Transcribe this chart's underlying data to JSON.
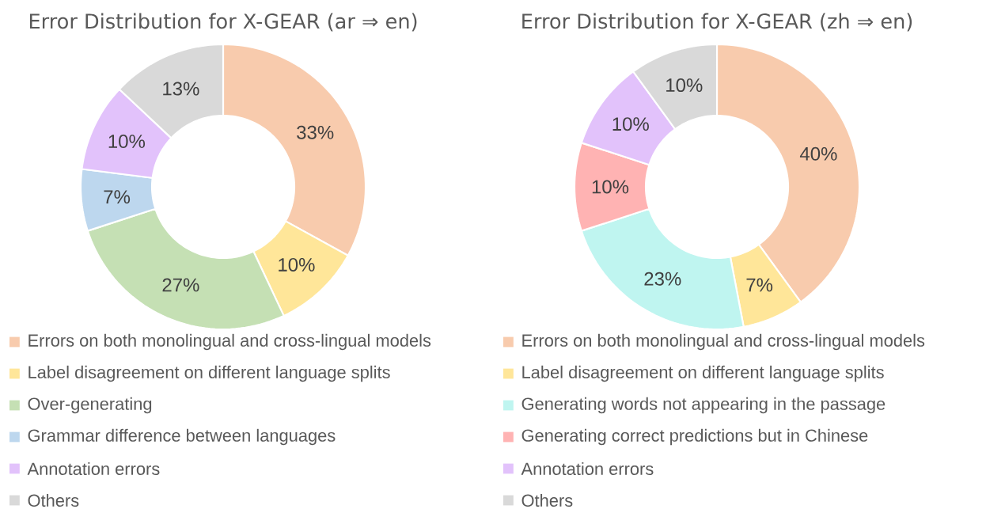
{
  "chart_data": [
    {
      "type": "donut",
      "title": "Error Distribution for X-GEAR (ar ⇒ en)",
      "legend": "bottom",
      "categories": [
        "Errors on both monolingual and cross-lingual models",
        "Label disagreement on different language splits",
        "Over-generating",
        "Grammar difference between languages",
        "Annotation errors",
        "Others"
      ],
      "values": [
        33,
        10,
        27,
        7,
        10,
        13
      ],
      "value_labels": [
        "33%",
        "10%",
        "27%",
        "7%",
        "10%",
        "13%"
      ],
      "colors": [
        "#f8cbad",
        "#ffe699",
        "#c5e0b4",
        "#bdd7ee",
        "#e2c2fb",
        "#d9d9d9"
      ]
    },
    {
      "type": "donut",
      "title": "Error Distribution for X-GEAR (zh ⇒ en)",
      "legend": "bottom",
      "categories": [
        "Errors on both monolingual and cross-lingual models",
        "Label disagreement on different language splits",
        "Generating words not appearing in the passage",
        "Generating correct predictions but in Chinese",
        "Annotation errors",
        "Others"
      ],
      "values": [
        40,
        7,
        23,
        10,
        10,
        10
      ],
      "value_labels": [
        "40%",
        "7%",
        "23%",
        "10%",
        "10%",
        "10%"
      ],
      "colors": [
        "#f8cbad",
        "#ffe699",
        "#bff5f0",
        "#ffb3b3",
        "#e2c2fb",
        "#d9d9d9"
      ]
    }
  ]
}
